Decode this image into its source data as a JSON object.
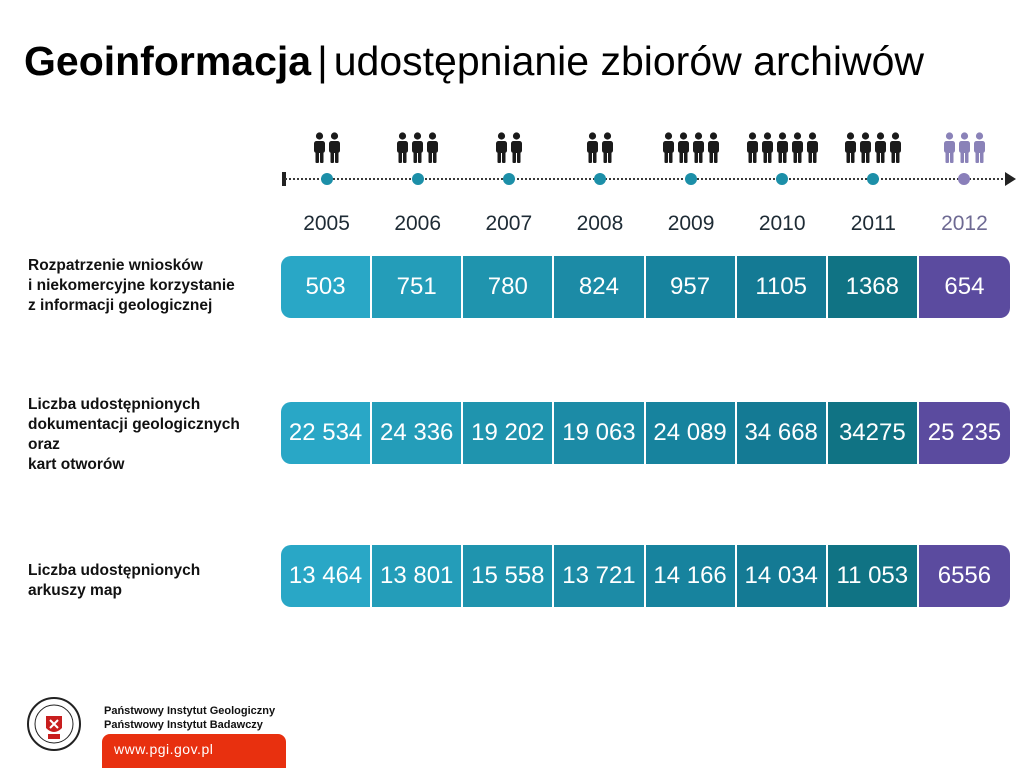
{
  "title": {
    "bold": "Geoinformacja",
    "separator": "|",
    "subtitle": "udostępnianie zbiorów archiwów"
  },
  "chart_data": {
    "type": "table",
    "categories": [
      "2005",
      "2006",
      "2007",
      "2008",
      "2009",
      "2010",
      "2011",
      "2012"
    ],
    "people_counts": [
      2,
      3,
      2,
      2,
      4,
      5,
      4,
      3
    ],
    "highlight_category": "2012",
    "series": [
      {
        "name": "Rozpatrzenie wniosków i niekomercyjne korzystanie z informacji geologicznej",
        "label_lines": [
          "Rozpatrzenie wniosków",
          "i niekomercyjne korzystanie",
          "z informacji geologicznej"
        ],
        "values": [
          503,
          751,
          780,
          824,
          957,
          1105,
          1368,
          654
        ],
        "labels": [
          "503",
          "751",
          "780",
          "824",
          "957",
          "1105",
          "1368",
          "654"
        ]
      },
      {
        "name": "Liczba udostępnionych dokumentacji geologicznych oraz kart otworów",
        "label_lines": [
          "Liczba udostępnionych",
          "dokumentacji geologicznych",
          "oraz",
          "kart otworów"
        ],
        "values": [
          22534,
          24336,
          19202,
          19063,
          24089,
          34668,
          34275,
          25235
        ],
        "labels": [
          "22 534",
          "24 336",
          "19 202",
          "19 063",
          "24 089",
          "34 668",
          "34275",
          "25 235"
        ]
      },
      {
        "name": "Liczba udostępnionych arkuszy map",
        "label_lines": [
          "Liczba udostępnionych",
          "arkuszy map"
        ],
        "values": [
          13464,
          13801,
          15558,
          13721,
          14166,
          14034,
          11053,
          6556
        ],
        "labels": [
          "13 464",
          "13 801",
          "15 558",
          "13 721",
          "14 166",
          "14 034",
          "11 053",
          "6556"
        ]
      }
    ]
  },
  "colors": {
    "cells": [
      "#29a7c6",
      "#249db9",
      "#1f94ae",
      "#1c8ba6",
      "#17839e",
      "#147a94",
      "#107384",
      "#5b4b9f"
    ],
    "dots": [
      "#1c8fa8",
      "#1c8fa8",
      "#1c8fa8",
      "#1c8fa8",
      "#1c8fa8",
      "#1c8fa8",
      "#1c8fa8",
      "#8a7fba"
    ],
    "people": [
      "#1a1a1a",
      "#1a1a1a",
      "#1a1a1a",
      "#1a1a1a",
      "#1a1a1a",
      "#1a1a1a",
      "#1a1a1a",
      "#8a82b8"
    ],
    "years": [
      "#1e2b35",
      "#1e2b35",
      "#1e2b35",
      "#1e2b35",
      "#1e2b35",
      "#1e2b35",
      "#1e2b35",
      "#6e6a93"
    ],
    "url_box": "#e8300f"
  },
  "footer": {
    "org_line1": "Państwowy Instytut Geologiczny",
    "org_line2": "Państwowy Instytut Badawczy",
    "url": "www.pgi.gov.pl",
    "logo_icon": "pgi-seal-logo"
  }
}
